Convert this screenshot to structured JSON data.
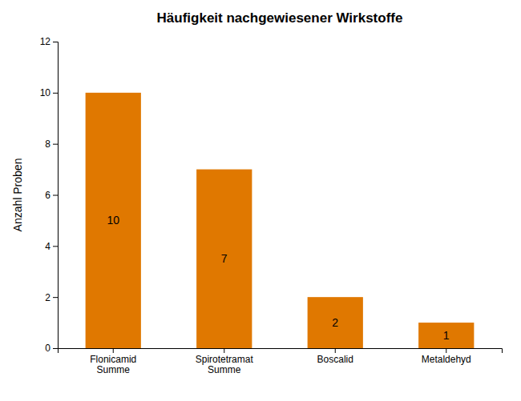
{
  "chart_data": {
    "type": "bar",
    "title": "Häufigkeit nachgewiesener Wirkstoffe",
    "ylabel": "Anzahl Proben",
    "categories": [
      "Flonicamid\nSumme",
      "Spirotetramat\nSumme",
      "Boscalid",
      "Metaldehyd"
    ],
    "values": [
      10,
      7,
      2,
      1
    ],
    "color": "#E07800",
    "ylim": [
      0,
      12
    ],
    "yticks": [
      0,
      2,
      4,
      6,
      8,
      10,
      12
    ],
    "grid": false,
    "data_labels": true
  }
}
